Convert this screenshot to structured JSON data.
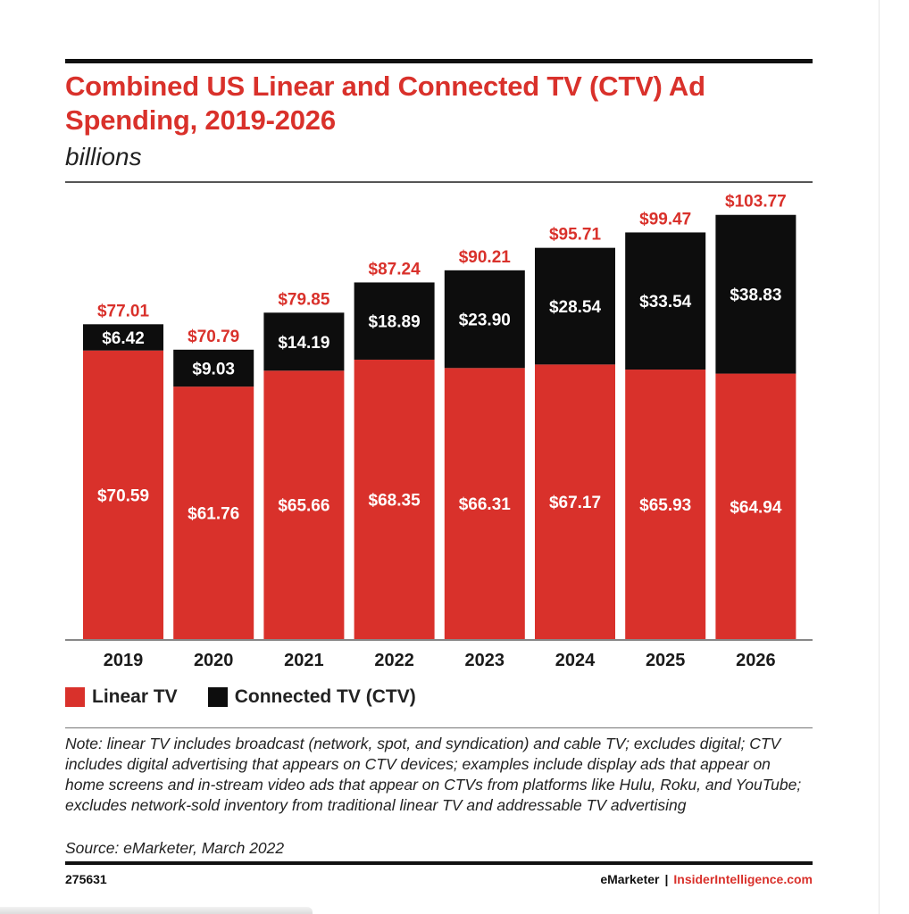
{
  "title": "Combined US Linear and Connected TV (CTV) Ad Spending, 2019-2026",
  "subtitle": "billions",
  "note": "Note: linear TV includes broadcast (network, spot, and syndication) and cable TV; excludes digital; CTV includes digital advertising that appears on CTV devices; examples include display ads that appear on home screens and in-stream video ads that appear on CTVs from platforms like Hulu, Roku, and YouTube; excludes network-sold inventory from traditional linear TV and addressable TV advertising",
  "source": "Source: eMarketer, March 2022",
  "chart_id": "275631",
  "brand": {
    "left": "eMarketer",
    "separator": "|",
    "right": "InsiderIntelligence.com"
  },
  "colors": {
    "linear": "#d9312b",
    "ctv": "#0d0d0d",
    "total_label": "#d9312b"
  },
  "legend": [
    {
      "label": "Linear TV",
      "color": "#d9312b"
    },
    {
      "label": "Connected TV (CTV)",
      "color": "#0d0d0d"
    }
  ],
  "chart_data": {
    "type": "bar",
    "stacked": true,
    "categories": [
      "2019",
      "2020",
      "2021",
      "2022",
      "2023",
      "2024",
      "2025",
      "2026"
    ],
    "series": [
      {
        "name": "Linear TV",
        "values": [
          70.59,
          61.76,
          65.66,
          68.35,
          66.31,
          67.17,
          65.93,
          64.94
        ],
        "labels": [
          "$70.59",
          "$61.76",
          "$65.66",
          "$68.35",
          "$66.31",
          "$67.17",
          "$65.93",
          "$64.94"
        ]
      },
      {
        "name": "Connected TV (CTV)",
        "values": [
          6.42,
          9.03,
          14.19,
          18.89,
          23.9,
          28.54,
          33.54,
          38.83
        ],
        "labels": [
          "$6.42",
          "$9.03",
          "$14.19",
          "$18.89",
          "$23.90",
          "$28.54",
          "$33.54",
          "$38.83"
        ]
      }
    ],
    "totals": [
      77.01,
      70.79,
      79.85,
      87.24,
      90.21,
      95.71,
      99.47,
      103.77
    ],
    "total_labels": [
      "$77.01",
      "$70.79",
      "$79.85",
      "$87.24",
      "$90.21",
      "$95.71",
      "$99.47",
      "$103.77"
    ],
    "legend_position": "bottom-left",
    "grid": false
  }
}
